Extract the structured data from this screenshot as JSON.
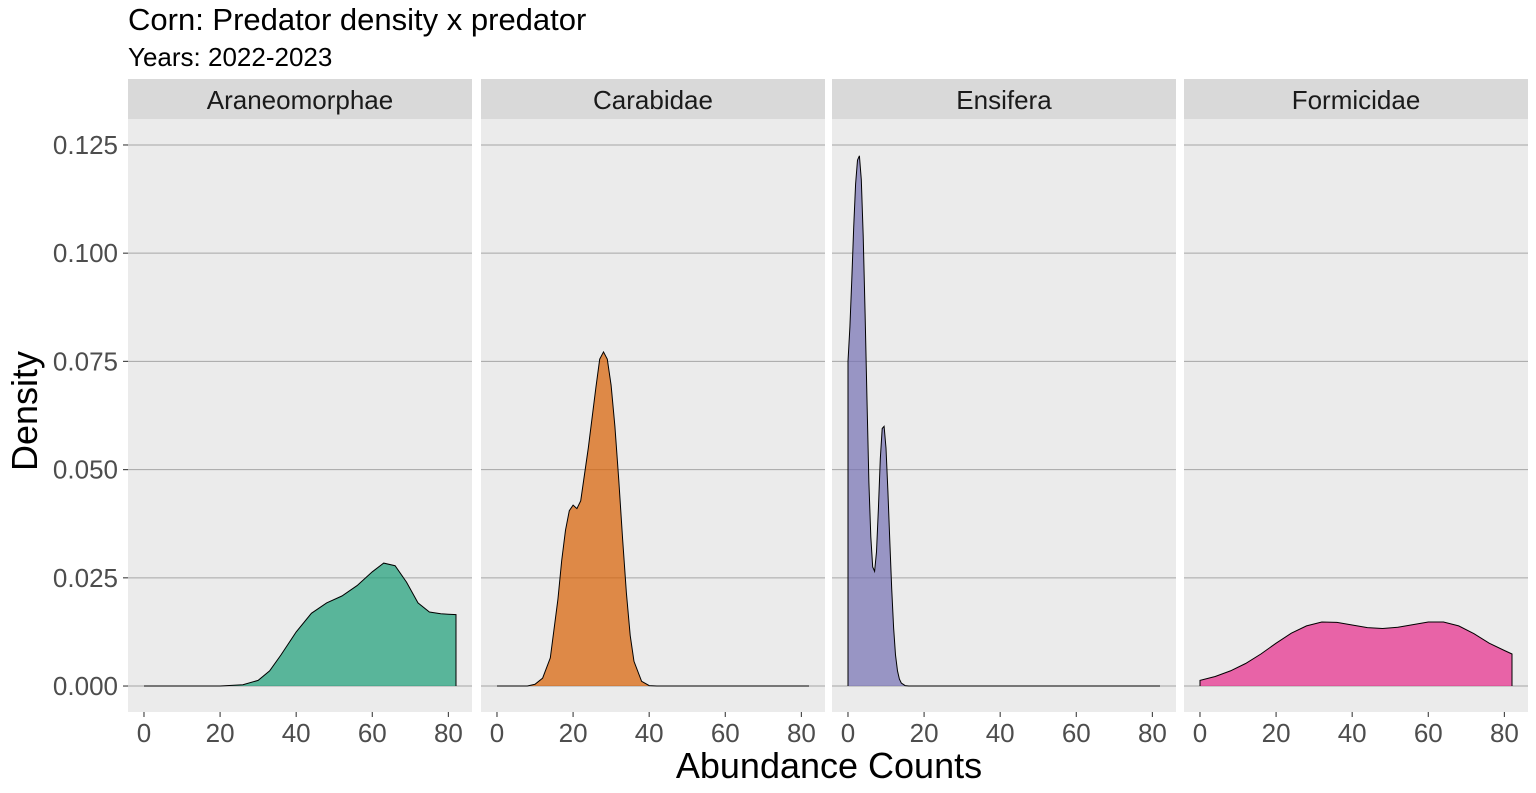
{
  "chart_data": {
    "type": "area",
    "title": "Corn: Predator density x predator",
    "subtitle": "Years: 2022-2023",
    "xlabel": "Abundance Counts",
    "ylabel": "Density",
    "xlim": [
      -4.2,
      86.2
    ],
    "ylim": [
      -0.006,
      0.131
    ],
    "x_ticks": [
      0,
      20,
      40,
      60,
      80
    ],
    "x_tick_labels": [
      "0",
      "20",
      "40",
      "60",
      "80"
    ],
    "y_ticks": [
      0,
      0.025,
      0.05,
      0.075,
      0.1,
      0.125
    ],
    "y_tick_labels": [
      "0.000",
      "0.025",
      "0.050",
      "0.075",
      "0.100",
      "0.125"
    ],
    "grid": true,
    "legend": "none",
    "facets": [
      {
        "name": "Araneomorphae",
        "color": "#1b9e77",
        "x": [
          0,
          20,
          26,
          30,
          33,
          36,
          40,
          44,
          48,
          52,
          56,
          60,
          63,
          66,
          69,
          72,
          75,
          78,
          80,
          82
        ],
        "y": [
          0,
          0,
          0.0003,
          0.0013,
          0.0035,
          0.0072,
          0.0125,
          0.0168,
          0.0192,
          0.0208,
          0.0232,
          0.0264,
          0.0284,
          0.0278,
          0.024,
          0.0192,
          0.0171,
          0.0167,
          0.0166,
          0.0165
        ]
      },
      {
        "name": "Carabidae",
        "color": "#d95f02",
        "x": [
          0,
          8,
          10,
          12,
          14,
          16,
          17,
          18,
          19,
          20,
          21,
          22,
          24,
          26,
          27,
          28,
          29,
          30,
          31,
          32,
          33,
          34,
          35,
          36,
          38,
          40,
          42,
          50,
          82
        ],
        "y": [
          0,
          0,
          0.0004,
          0.0018,
          0.0065,
          0.02,
          0.029,
          0.036,
          0.0405,
          0.0418,
          0.041,
          0.0428,
          0.055,
          0.069,
          0.0755,
          0.0772,
          0.0755,
          0.0695,
          0.06,
          0.0475,
          0.034,
          0.0215,
          0.0117,
          0.0057,
          0.0011,
          0.0001,
          0,
          0,
          0
        ]
      },
      {
        "name": "Ensifera",
        "color": "#7570b3",
        "x": [
          0,
          0.5,
          1,
          1.5,
          2,
          2.5,
          3,
          3.5,
          4,
          4.5,
          5,
          5.5,
          6,
          6.5,
          7,
          7.5,
          8,
          8.5,
          9,
          9.5,
          10,
          10.5,
          11,
          11.5,
          12,
          12.5,
          13,
          13.5,
          14,
          15,
          16,
          20,
          82
        ],
        "y": [
          0.075,
          0.083,
          0.094,
          0.106,
          0.116,
          0.1215,
          0.1225,
          0.117,
          0.104,
          0.086,
          0.066,
          0.047,
          0.0345,
          0.0275,
          0.0265,
          0.031,
          0.041,
          0.0525,
          0.0595,
          0.06,
          0.055,
          0.045,
          0.0335,
          0.0225,
          0.0135,
          0.0072,
          0.0035,
          0.0016,
          0.0007,
          0.0001,
          0,
          0,
          0
        ]
      },
      {
        "name": "Formicidae",
        "color": "#e7298a",
        "x": [
          0,
          4,
          8,
          12,
          16,
          20,
          24,
          28,
          32,
          36,
          40,
          44,
          48,
          52,
          56,
          60,
          64,
          68,
          72,
          76,
          80,
          82
        ],
        "y": [
          0.0013,
          0.0022,
          0.0035,
          0.0052,
          0.0074,
          0.0099,
          0.0122,
          0.0139,
          0.0148,
          0.0147,
          0.0141,
          0.0135,
          0.0133,
          0.0136,
          0.0142,
          0.0148,
          0.0148,
          0.0139,
          0.0121,
          0.0099,
          0.0082,
          0.0074
        ]
      }
    ]
  }
}
